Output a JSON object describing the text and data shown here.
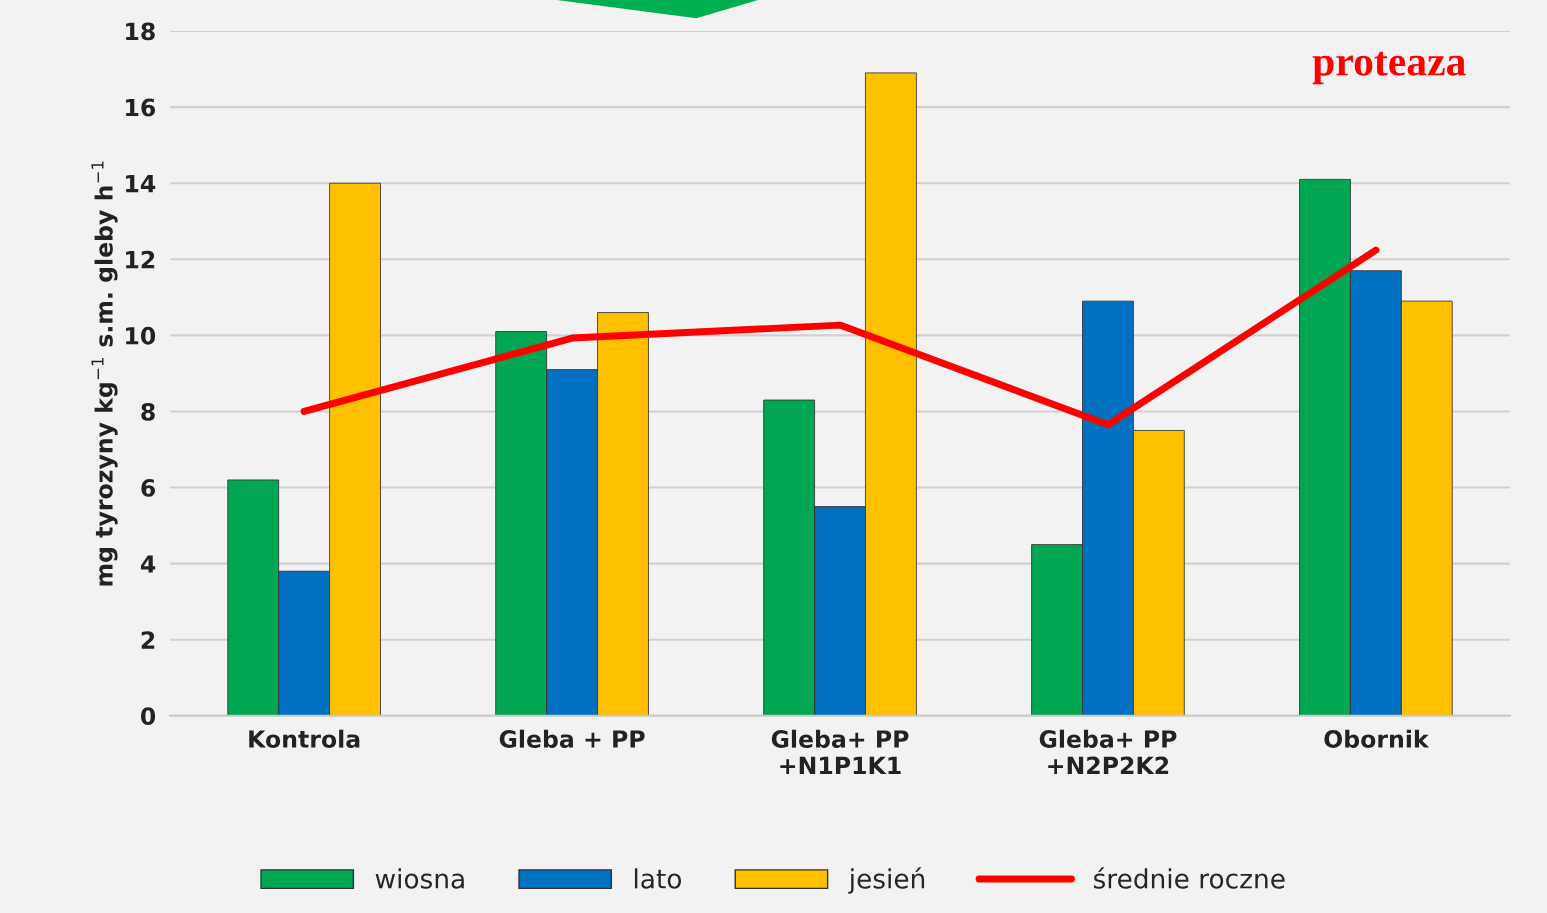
{
  "chart_data": {
    "type": "bar",
    "title": "proteaza",
    "ylabel": "mg tyrozyny kg$^{−1}$ s.m. gleby h$^{−1}$",
    "categories": [
      "Kontrola",
      "Gleba + PP",
      "Gleba+ PP\n+N1P1K1",
      "Gleba+ PP\n+N2P2K2",
      "Obornik"
    ],
    "series": [
      {
        "name": "wiosna",
        "color": "#00a651",
        "values": [
          6.2,
          10.1,
          8.3,
          4.5,
          14.1
        ]
      },
      {
        "name": "lato",
        "color": "#0070c0",
        "values": [
          3.8,
          9.1,
          5.5,
          10.9,
          11.7
        ]
      },
      {
        "name": "jesień",
        "color": "#ffc000",
        "values": [
          14.0,
          10.6,
          16.9,
          7.5,
          10.9
        ]
      },
      {
        "name": "średnie roczne",
        "type": "line",
        "color": "#ff0000",
        "values": [
          8.0,
          9.93,
          10.27,
          7.65,
          12.24
        ]
      }
    ],
    "ylim": [
      0,
      18
    ],
    "yticks": [
      0,
      2,
      4,
      6,
      8,
      10,
      12,
      14,
      16,
      18
    ],
    "grid": "y",
    "legend": "bottom"
  }
}
